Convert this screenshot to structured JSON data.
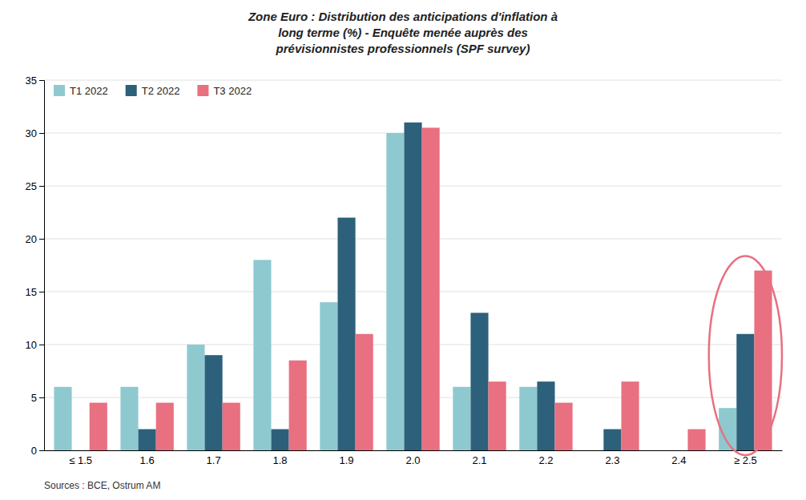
{
  "chart_data": {
    "type": "bar",
    "title": [
      "Zone Euro : Distribution des anticipations d'inflation à",
      "long terme (%) - Enquête menée auprès des",
      "prévisionnistes professionnels (SPF survey)"
    ],
    "categories": [
      "≤ 1.5",
      "1.6",
      "1.7",
      "1.8",
      "1.9",
      "2.0",
      "2.1",
      "2.2",
      "2.3",
      "2.4",
      "≥ 2.5"
    ],
    "series": [
      {
        "name": "T1 2022",
        "color": "#8EC9D0",
        "values": [
          6,
          6,
          10,
          18,
          14,
          30,
          6,
          6,
          0,
          0,
          4
        ]
      },
      {
        "name": "T2 2022",
        "color": "#2D607A",
        "values": [
          0,
          2,
          9,
          2,
          22,
          31,
          13,
          6.5,
          2,
          0,
          11
        ]
      },
      {
        "name": "T3 2022",
        "color": "#E87080",
        "values": [
          4.5,
          4.5,
          4.5,
          8.5,
          11,
          30.5,
          6.5,
          4.5,
          6.5,
          2,
          17
        ]
      }
    ],
    "ylim": [
      0,
      35
    ],
    "yticks": [
      0,
      5,
      10,
      15,
      20,
      25,
      30,
      35
    ],
    "grid": true,
    "legend": "upper left",
    "annotations": [
      {
        "text": "Sources : BCE, Ostrum AM"
      },
      {
        "shape": "ellipse",
        "category": "≥ 2.5",
        "color": "#E87080"
      }
    ]
  }
}
